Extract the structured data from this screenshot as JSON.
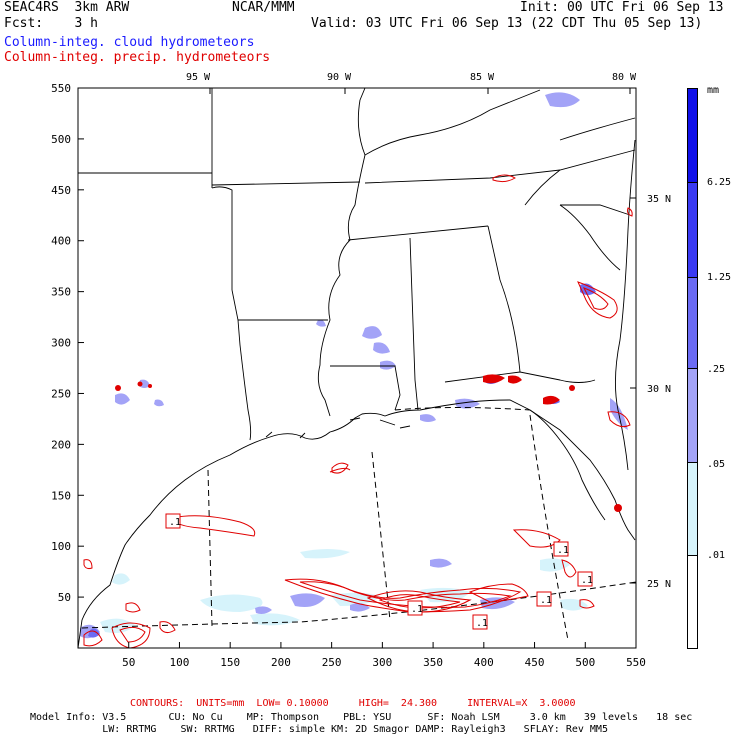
{
  "header": {
    "model": "SEAC4RS  3km ARW",
    "center": "NCAR/MMM",
    "init": "Init: 00 UTC Fri 06 Sep 13",
    "fcst": "Fcst:    3 h",
    "valid": "Valid: 03 UTC Fri 06 Sep 13 (22 CDT Thu 05 Sep 13)",
    "field1": "Column-integ. cloud hydrometeors",
    "field2": "Column-integ. precip. hydrometeors"
  },
  "map": {
    "lon_labels": [
      "95 W",
      "90 W",
      "85 W",
      "80 W"
    ],
    "lat_labels": [
      "35 N",
      "30 N",
      "25 N"
    ],
    "x_ticks": [
      "50",
      "100",
      "150",
      "200",
      "250",
      "300",
      "350",
      "400",
      "450",
      "500",
      "550"
    ],
    "y_ticks": [
      "550",
      "500",
      "450",
      "400",
      "350",
      "300",
      "250",
      "200",
      "150",
      "100",
      "50"
    ],
    "contour_labels": [
      ".1",
      ".1",
      ".1",
      ".1",
      ".1",
      ".1"
    ]
  },
  "legend": {
    "unit": "mm",
    "levels": [
      "6.25",
      "1.25",
      ".25",
      ".05",
      ".01"
    ],
    "colors": [
      "#1010e8",
      "#3a3af2",
      "#6b6bf4",
      "#a3a3f7",
      "#d6f3fb",
      "#ffffff"
    ]
  },
  "footer": {
    "contours": "CONTOURS:  UNITS=mm  LOW= 0.10000     HIGH=  24.300     INTERVAL=X  3.0000",
    "info1": "Model Info: V3.5       CU: No Cu    MP: Thompson    PBL: YSU      SF: Noah LSM     3.0 km   39 levels   18 sec",
    "info2": "            LW: RRTMG    SW: RRTMG   DIFF: simple KM: 2D Smagor DAMP: Rayleigh3   SFLAY: Rev MM5"
  }
}
